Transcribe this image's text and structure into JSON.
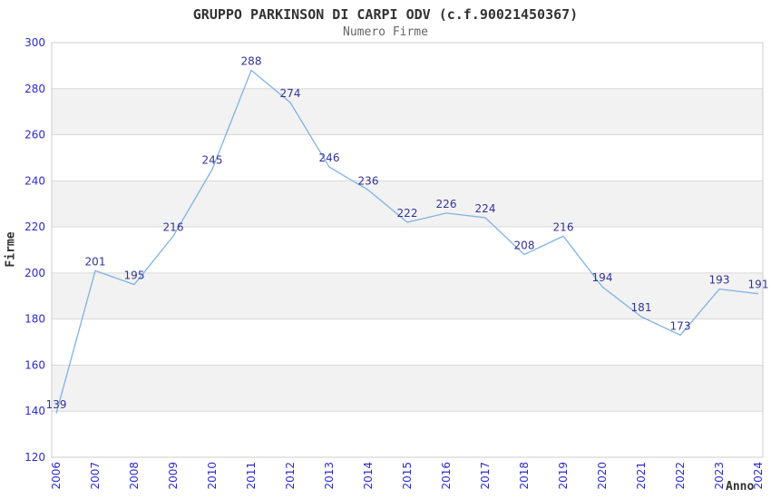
{
  "chart_data": {
    "type": "line",
    "title": "GRUPPO PARKINSON DI CARPI ODV (c.f.90021450367)",
    "subtitle": "Numero Firme",
    "xlabel": "Anno",
    "ylabel": "Firme",
    "x": [
      "2006",
      "2007",
      "2008",
      "2009",
      "2010",
      "2011",
      "2012",
      "2013",
      "2014",
      "2015",
      "2016",
      "2017",
      "2018",
      "2019",
      "2020",
      "2021",
      "2022",
      "2023",
      "2024"
    ],
    "values": [
      139,
      201,
      195,
      216,
      245,
      288,
      274,
      246,
      236,
      222,
      226,
      224,
      208,
      216,
      194,
      181,
      173,
      193,
      191
    ],
    "ylim": [
      120,
      300
    ],
    "yticks": [
      300,
      280,
      260,
      240,
      220,
      200,
      180,
      160,
      140,
      120
    ],
    "grid": "horizontal gridlines with alternating shaded bands",
    "legend_position": "none",
    "show_markers": false,
    "colors": {
      "series_line": "#7fb2e5",
      "data_label": "#333399",
      "tick_label": "#2b2bd2",
      "band_fill": "#f2f2f2",
      "gridline": "#d9d9d9",
      "plot_border": "#cccccc",
      "title_text": "#333333",
      "subtitle_text": "#666666"
    }
  }
}
